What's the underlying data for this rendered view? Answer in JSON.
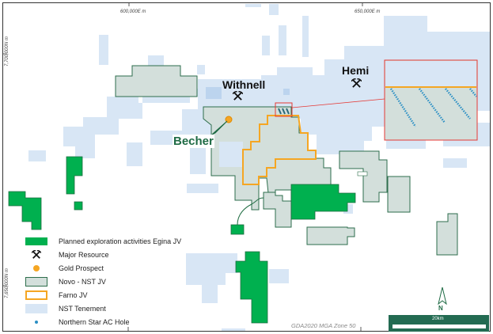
{
  "map": {
    "axes": {
      "easting_ticks": [
        "600,000E m",
        "650,000E m"
      ],
      "northing_ticks": [
        "7,700,000N m",
        "7,650,000N m"
      ]
    },
    "places": {
      "withnell": "Withnell",
      "hemi": "Hemi",
      "becher": "Becher"
    },
    "projection": "GDA2020 MGA Zone 50",
    "north_label": "N",
    "scale_bar": "20km",
    "colors": {
      "planned_exploration": "#00b04f",
      "novo_nst_jv_fill": "#d3dfdb",
      "novo_nst_jv_outline": "#2e6e4c",
      "farno_jv": "#f5a623",
      "nst_tenement": "#d8e6f5",
      "inset_frame": "#e53935",
      "scale_bar_bg": "#236b52",
      "label_green": "#1f6b45"
    }
  },
  "legend": {
    "items": [
      {
        "label": "Planned exploration activities Egina JV",
        "icon": "green-fill-swatch"
      },
      {
        "label": "Major Resource",
        "icon": "crossed-pickaxes-icon"
      },
      {
        "label": "Gold Prospect",
        "icon": "gold-dot-icon"
      },
      {
        "label": "Novo - NST JV",
        "icon": "grey-green-outline-swatch"
      },
      {
        "label": "Farno JV",
        "icon": "orange-outline-swatch"
      },
      {
        "label": "NST Tenement",
        "icon": "light-blue-swatch"
      },
      {
        "label": "Northern Star AC Hole",
        "icon": "blue-dot-icon"
      }
    ]
  }
}
